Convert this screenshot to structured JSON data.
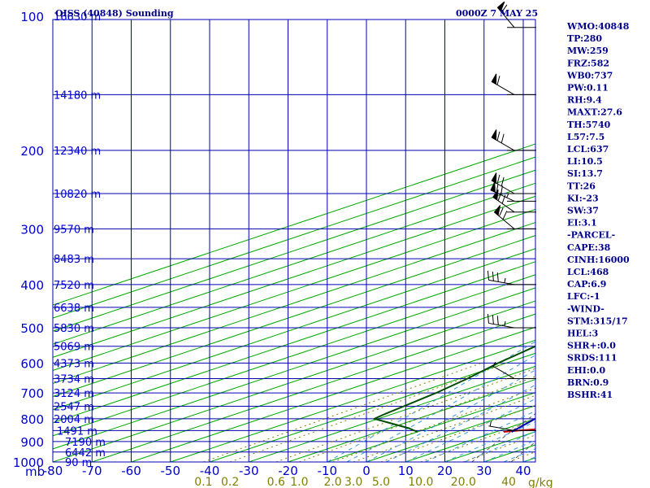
{
  "chart_data": {
    "type": "line",
    "title": "OISS (40848) Sounding",
    "time_label": "0000Z  7 MAY 25",
    "x_unit_label": "mb",
    "mixing_unit_label": "g/kg",
    "xlim": [
      -80,
      0
    ],
    "pressure_range": [
      1000,
      100
    ],
    "x_ticks": [
      "-80",
      "-70",
      "-60",
      "-50",
      "-40",
      "-30",
      "-20",
      "-10",
      "0",
      "10",
      "20",
      "30",
      "40"
    ],
    "x_tick_values": [
      -80,
      -70,
      -60,
      -50,
      -40,
      -30,
      -20,
      -10,
      0,
      10,
      20,
      30,
      40
    ],
    "pressure_labels": [
      "100",
      "200",
      "300",
      "400",
      "500",
      "600",
      "700",
      "800",
      "900",
      "1000"
    ],
    "pressure_values": [
      100,
      200,
      300,
      400,
      500,
      600,
      700,
      800,
      900,
      1000
    ],
    "height_labels": [
      {
        "p": 100,
        "text": "16630 m"
      },
      {
        "p": 150,
        "text": "14180 m"
      },
      {
        "p": 200,
        "text": "12340 m"
      },
      {
        "p": 250,
        "text": "10820 m"
      },
      {
        "p": 300,
        "text": "9570 m"
      },
      {
        "p": 350,
        "text": "8483 m"
      },
      {
        "p": 400,
        "text": "7520 m"
      },
      {
        "p": 450,
        "text": "6638 m"
      },
      {
        "p": 500,
        "text": "5830 m"
      },
      {
        "p": 550,
        "text": "5069 m"
      },
      {
        "p": 600,
        "text": "4373 m"
      },
      {
        "p": 650,
        "text": "3734 m"
      },
      {
        "p": 700,
        "text": "3124 m"
      },
      {
        "p": 750,
        "text": "2547 m"
      },
      {
        "p": 800,
        "text": "2004 m"
      },
      {
        "p": 850,
        "text": "1491 m"
      },
      {
        "p": 900,
        "text": "7190 m"
      },
      {
        "p": 950,
        "text": "6442 m"
      },
      {
        "p": 1000,
        "text": "90 m"
      }
    ],
    "mixing_ratio_labels": [
      "0.1",
      "0.2",
      "0.6",
      "1.0",
      "2.0",
      "3.0",
      "5.0",
      "10.0",
      "20.0",
      "40"
    ],
    "mixing_ratio_values": [
      0.1,
      0.2,
      0.6,
      1.0,
      2.0,
      3.0,
      5.0,
      10.0,
      20.0,
      40
    ],
    "series": [
      {
        "kind": "temperature",
        "color": "#cc0000",
        "points": [
          [
            856,
            12
          ],
          [
            853,
            13
          ],
          [
            845,
            18
          ],
          [
            830,
            17
          ],
          [
            800,
            15
          ],
          [
            750,
            11
          ],
          [
            700,
            6
          ],
          [
            650,
            1
          ],
          [
            600,
            -5
          ],
          [
            550,
            -11
          ],
          [
            500,
            -17
          ],
          [
            470,
            -20.5
          ],
          [
            450,
            -22
          ],
          [
            430,
            -24
          ],
          [
            400,
            -28
          ],
          [
            370,
            -32
          ],
          [
            350,
            -36
          ],
          [
            320,
            -39
          ],
          [
            300,
            -42
          ],
          [
            280,
            -46
          ],
          [
            270,
            -47
          ],
          [
            255,
            -44
          ],
          [
            250,
            -44
          ],
          [
            240,
            -45
          ],
          [
            200,
            -52
          ],
          [
            175,
            -57
          ],
          [
            170,
            -60
          ],
          [
            160,
            -63
          ],
          [
            150,
            -70
          ],
          [
            145,
            -73
          ],
          [
            140,
            -74
          ],
          [
            130,
            -75
          ],
          [
            100,
            -78
          ]
        ]
      },
      {
        "kind": "dewpoint",
        "color": "#004d00",
        "points": [
          [
            856,
            -10
          ],
          [
            840,
            -15
          ],
          [
            800,
            -31
          ],
          [
            780,
            -32
          ],
          [
            700,
            -35
          ],
          [
            650,
            -38
          ],
          [
            600,
            -42
          ],
          [
            500,
            -49
          ],
          [
            460,
            -49
          ],
          [
            455,
            -62
          ],
          [
            440,
            -65
          ],
          [
            400,
            -58
          ],
          [
            380,
            -58
          ],
          [
            360,
            -58
          ],
          [
            350,
            -60
          ],
          [
            320,
            -69
          ],
          [
            300,
            -74
          ],
          [
            290,
            -74
          ],
          [
            280,
            -77
          ],
          [
            260,
            -80
          ]
        ]
      },
      {
        "kind": "parcel",
        "color": "#0000b0",
        "points": [
          [
            856,
            14
          ],
          [
            800,
            10
          ],
          [
            700,
            0
          ],
          [
            600,
            -9
          ],
          [
            500,
            -19
          ],
          [
            400,
            -35
          ],
          [
            300,
            -54
          ],
          [
            250,
            -63
          ],
          [
            200,
            -72
          ],
          [
            180,
            -80
          ]
        ]
      }
    ],
    "wind_barbs": [
      {
        "p": 106,
        "dir": 320,
        "speed": 60
      },
      {
        "p": 150,
        "dir": 300,
        "speed": 60
      },
      {
        "p": 200,
        "dir": 300,
        "speed": 70
      },
      {
        "p": 250,
        "dir": 300,
        "speed": 70
      },
      {
        "p": 260,
        "dir": 295,
        "speed": 75
      },
      {
        "p": 275,
        "dir": 305,
        "speed": 70
      },
      {
        "p": 300,
        "dir": 310,
        "speed": 70
      },
      {
        "p": 400,
        "dir": 280,
        "speed": 35
      },
      {
        "p": 500,
        "dir": 280,
        "speed": 35
      },
      {
        "p": 650,
        "dir": 300,
        "speed": 5
      },
      {
        "p": 850,
        "dir": 280,
        "speed": 5
      }
    ],
    "indices": [
      "WMO:40848",
      "TP:280",
      "MW:259",
      "FRZ:582",
      "WB0:737",
      "PW:0.11",
      "RH:9.4",
      "MAXT:27.6",
      "TH:5740",
      "L57:7.5",
      "LCL:637",
      "LI:10.5",
      "SI:13.7",
      "TT:26",
      "KI:-23",
      "SW:37",
      "EI:3.1",
      "-PARCEL-",
      "CAPE:38",
      "CINH:16000",
      "LCL:468",
      "CAP:6.9",
      "LFC:-1",
      "-WIND-",
      "STM:315/17",
      "HEL:3",
      "SHR+:0.0",
      "SRDS:111",
      "EHI:0.0",
      "BRN:0.9",
      "BSHR:41"
    ],
    "colors": {
      "frame": "#0000b0",
      "isobar": "#0000b0",
      "isotherm_vertical": "#0000b0",
      "skew_isotherm": "#00aa00",
      "dry_adiabat": "#555555",
      "moist_adiabat": "#3399dd",
      "mixing_ratio": "#808000"
    },
    "grid": true,
    "legend": "none"
  }
}
